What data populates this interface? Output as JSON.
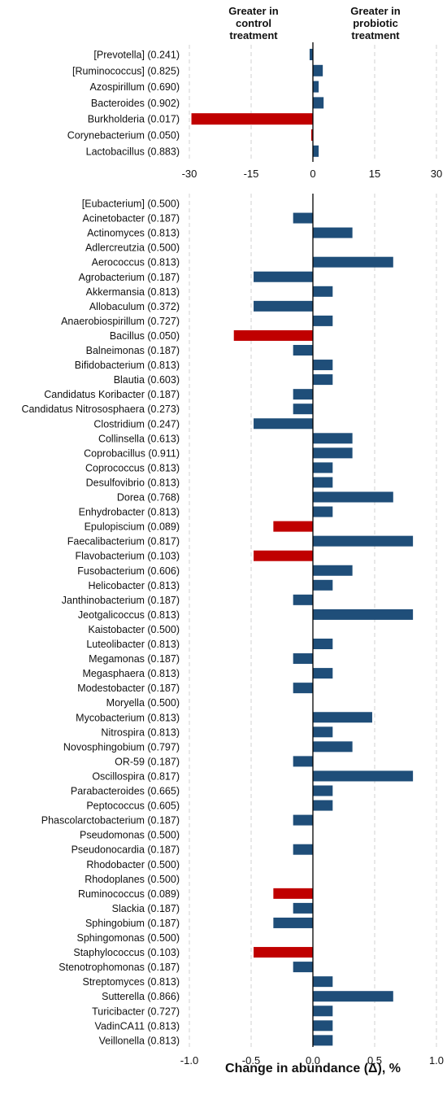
{
  "headers": {
    "left": "Greater in control treatment",
    "right": "Greater in probiotic treatment"
  },
  "xlabel": "Change in abundance (Δ), %",
  "colors": {
    "positive_bar": "#1f4e79",
    "significant_bar": "#c00000",
    "gridline": "#d0d0d0",
    "axis": "#000000"
  },
  "chart_data": [
    {
      "type": "bar",
      "orientation": "horizontal",
      "xlim": [
        -30,
        30
      ],
      "xticks": [
        -30,
        -15,
        0,
        15,
        30
      ],
      "xtick_labels": [
        "-30",
        "-15",
        "0",
        "15",
        "30"
      ],
      "grid": "vertical dashed",
      "categories": [
        "[Prevotella] (0.241)",
        "[Ruminococcus] (0.825)",
        "Azospirillum (0.690)",
        "Bacteroides (0.902)",
        "Burkholderia (0.017)",
        "Corynebacterium (0.050)",
        "Lactobacillus (0.883)"
      ],
      "values": [
        -0.8,
        2.4,
        1.4,
        2.6,
        -29.5,
        -0.4,
        1.4
      ],
      "highlighted": [
        false,
        false,
        false,
        false,
        true,
        true,
        false
      ]
    },
    {
      "type": "bar",
      "orientation": "horizontal",
      "xlim": [
        -1.0,
        1.0
      ],
      "xticks": [
        -1.0,
        -0.5,
        0.0,
        0.5,
        1.0
      ],
      "xtick_labels": [
        "-1.0",
        "-0.5",
        "0.0",
        "0.5",
        "1.0"
      ],
      "xlabel": "Change in abundance (Δ), %",
      "grid": "vertical dashed",
      "categories": [
        "[Eubacterium] (0.500)",
        "Acinetobacter (0.187)",
        "Actinomyces (0.813)",
        "Adlercreutzia (0.500)",
        "Aerococcus (0.813)",
        "Agrobacterium (0.187)",
        "Akkermansia (0.813)",
        "Allobaculum (0.372)",
        "Anaerobiospirillum (0.727)",
        "Bacillus (0.050)",
        "Balneimonas (0.187)",
        "Bifidobacterium (0.813)",
        "Blautia (0.603)",
        "Candidatus Koribacter (0.187)",
        "Candidatus Nitrososphaera (0.273)",
        "Clostridium (0.247)",
        "Collinsella (0.613)",
        "Coprobacillus (0.911)",
        "Coprococcus (0.813)",
        "Desulfovibrio (0.813)",
        "Dorea (0.768)",
        "Enhydrobacter (0.813)",
        "Epulopiscium (0.089)",
        "Faecalibacterium (0.817)",
        "Flavobacterium (0.103)",
        "Fusobacterium (0.606)",
        "Helicobacter (0.813)",
        "Janthinobacterium (0.187)",
        "Jeotgalicoccus (0.813)",
        "Kaistobacter (0.500)",
        "Luteolibacter (0.813)",
        "Megamonas (0.187)",
        "Megasphaera (0.813)",
        "Modestobacter (0.187)",
        "Moryella (0.500)",
        "Mycobacterium (0.813)",
        "Nitrospira (0.813)",
        "Novosphingobium (0.797)",
        "OR-59 (0.187)",
        "Oscillospira (0.817)",
        "Parabacteroides (0.665)",
        "Peptococcus (0.605)",
        "Phascolarctobacterium (0.187)",
        "Pseudomonas (0.500)",
        "Pseudonocardia (0.187)",
        "Rhodobacter (0.500)",
        "Rhodoplanes (0.500)",
        "Ruminococcus (0.089)",
        "Slackia (0.187)",
        "Sphingobium (0.187)",
        "Sphingomonas (0.500)",
        "Staphylococcus (0.103)",
        "Stenotrophomonas (0.187)",
        "Streptomyces (0.813)",
        "Sutterella (0.866)",
        "Turicibacter (0.727)",
        "VadinCA11 (0.813)",
        "Veillonella (0.813)"
      ],
      "values": [
        0,
        -0.16,
        0.32,
        0,
        0.65,
        -0.48,
        0.16,
        -0.48,
        0.16,
        -0.64,
        -0.16,
        0.16,
        0.16,
        -0.16,
        -0.16,
        -0.48,
        0.32,
        0.32,
        0.16,
        0.16,
        0.65,
        0.16,
        -0.32,
        0.81,
        -0.48,
        0.32,
        0.16,
        -0.16,
        0.81,
        0,
        0.16,
        -0.16,
        0.16,
        -0.16,
        0,
        0.48,
        0.16,
        0.32,
        -0.16,
        0.81,
        0.16,
        0.16,
        -0.16,
        0,
        -0.16,
        0,
        0,
        -0.32,
        -0.16,
        -0.32,
        0,
        -0.48,
        -0.16,
        0.16,
        0.65,
        0.16,
        0.16,
        0.16
      ],
      "highlighted": [
        false,
        false,
        false,
        false,
        false,
        false,
        false,
        false,
        false,
        true,
        false,
        false,
        false,
        false,
        false,
        false,
        false,
        false,
        false,
        false,
        false,
        false,
        true,
        false,
        true,
        false,
        false,
        false,
        false,
        false,
        false,
        false,
        false,
        false,
        false,
        false,
        false,
        false,
        false,
        false,
        false,
        false,
        false,
        false,
        false,
        false,
        false,
        true,
        false,
        false,
        false,
        true,
        false,
        false,
        false,
        false,
        false,
        false
      ]
    }
  ]
}
